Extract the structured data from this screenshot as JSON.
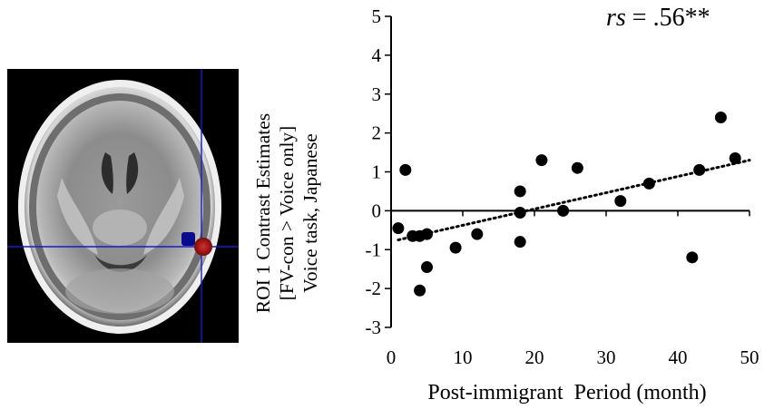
{
  "brain_image": {
    "crosshair_color": "#1a1acc",
    "marker_blue": "#0a0a8c",
    "marker_red": "#9b1010"
  },
  "stat_annotation": {
    "prefix": "rs",
    "value": " = .56**"
  },
  "chart_data": {
    "type": "scatter",
    "title": "",
    "xlabel": "Post-immigrant  Period (month)",
    "ylabel_lines": [
      "ROI 1 Contrast Estimates",
      "[FV-con > Voice only]",
      "Voice task, Japanese"
    ],
    "xlim": [
      0,
      50
    ],
    "ylim": [
      -3,
      5
    ],
    "x_ticks": [
      0,
      10,
      20,
      30,
      40,
      50
    ],
    "y_ticks": [
      -3,
      -2,
      -1,
      0,
      1,
      2,
      3,
      4,
      5
    ],
    "grid": false,
    "legend": "none",
    "points": [
      {
        "x": 1,
        "y": -0.45
      },
      {
        "x": 2,
        "y": 1.05
      },
      {
        "x": 3,
        "y": -0.65
      },
      {
        "x": 4,
        "y": -0.65
      },
      {
        "x": 4,
        "y": -2.05
      },
      {
        "x": 5,
        "y": -0.6
      },
      {
        "x": 5,
        "y": -1.45
      },
      {
        "x": 9,
        "y": -0.95
      },
      {
        "x": 12,
        "y": -0.6
      },
      {
        "x": 18,
        "y": 0.5
      },
      {
        "x": 18,
        "y": -0.05
      },
      {
        "x": 18,
        "y": -0.8
      },
      {
        "x": 21,
        "y": 1.3
      },
      {
        "x": 24,
        "y": 0.0
      },
      {
        "x": 26,
        "y": 1.1
      },
      {
        "x": 32,
        "y": 0.25
      },
      {
        "x": 36,
        "y": 0.7
      },
      {
        "x": 42,
        "y": -1.2
      },
      {
        "x": 43,
        "y": 1.05
      },
      {
        "x": 46,
        "y": 2.4
      },
      {
        "x": 48,
        "y": 1.35
      }
    ],
    "trendline": {
      "style": "dotted",
      "from": {
        "x": 1,
        "y": -0.75
      },
      "to": {
        "x": 50,
        "y": 1.3
      }
    },
    "colors": {
      "points": "#000000",
      "axes": "#000000"
    }
  }
}
